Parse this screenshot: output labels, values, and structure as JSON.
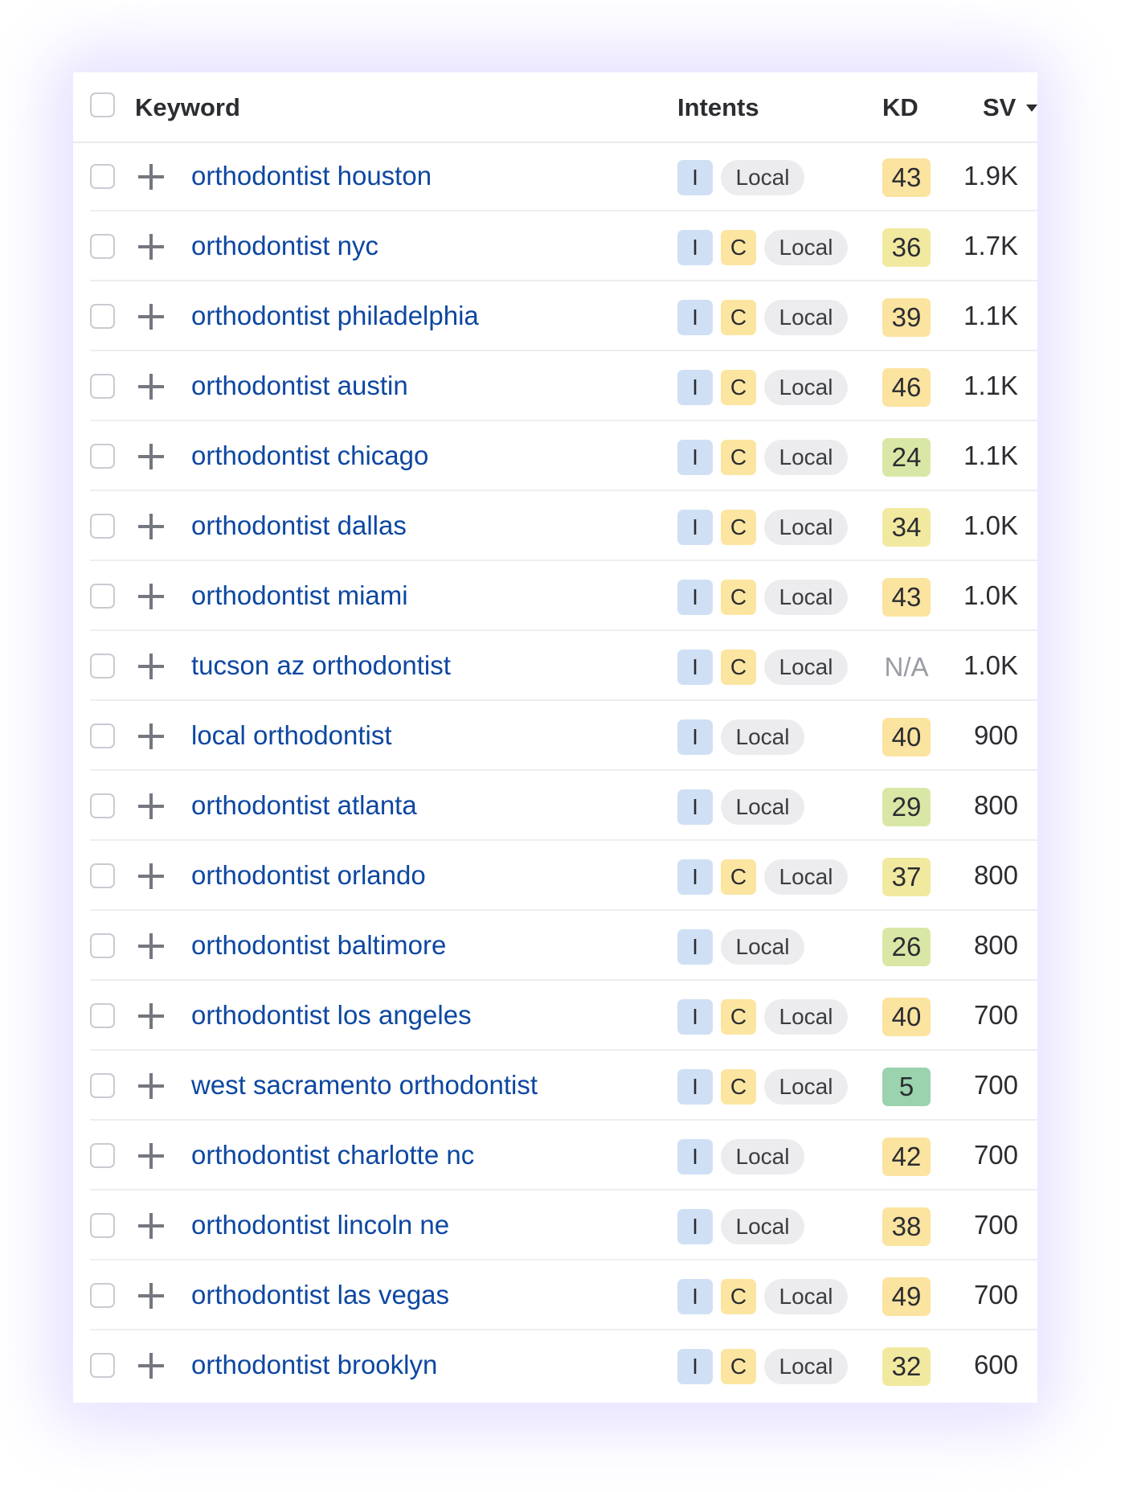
{
  "columns": {
    "keyword": "Keyword",
    "intents": "Intents",
    "kd": "KD",
    "sv": "SV",
    "sv_sort_icon": "caret-down-icon"
  },
  "colors": {
    "keyword_link": "#0d47a1",
    "intent_informational": "#cfe0f5",
    "intent_commercial": "#fbe5a0",
    "intent_local": "#ececef",
    "kd_easy": "#9ad3ae",
    "kd_possible": "#d9e7a6",
    "kd_mid": "#f2e9a0",
    "kd_hard": "#fbe3a0"
  },
  "rows": [
    {
      "keyword": "orthodontist houston",
      "intents": [
        "I",
        "Local"
      ],
      "kd": "43",
      "sv": "1.9K"
    },
    {
      "keyword": "orthodontist nyc",
      "intents": [
        "I",
        "C",
        "Local"
      ],
      "kd": "36",
      "sv": "1.7K"
    },
    {
      "keyword": "orthodontist philadelphia",
      "intents": [
        "I",
        "C",
        "Local"
      ],
      "kd": "39",
      "sv": "1.1K"
    },
    {
      "keyword": "orthodontist austin",
      "intents": [
        "I",
        "C",
        "Local"
      ],
      "kd": "46",
      "sv": "1.1K"
    },
    {
      "keyword": "orthodontist chicago",
      "intents": [
        "I",
        "C",
        "Local"
      ],
      "kd": "24",
      "sv": "1.1K"
    },
    {
      "keyword": "orthodontist dallas",
      "intents": [
        "I",
        "C",
        "Local"
      ],
      "kd": "34",
      "sv": "1.0K"
    },
    {
      "keyword": "orthodontist miami",
      "intents": [
        "I",
        "C",
        "Local"
      ],
      "kd": "43",
      "sv": "1.0K"
    },
    {
      "keyword": "tucson az orthodontist",
      "intents": [
        "I",
        "C",
        "Local"
      ],
      "kd": "N/A",
      "sv": "1.0K"
    },
    {
      "keyword": "local orthodontist",
      "intents": [
        "I",
        "Local"
      ],
      "kd": "40",
      "sv": "900"
    },
    {
      "keyword": "orthodontist atlanta",
      "intents": [
        "I",
        "Local"
      ],
      "kd": "29",
      "sv": "800"
    },
    {
      "keyword": "orthodontist orlando",
      "intents": [
        "I",
        "C",
        "Local"
      ],
      "kd": "37",
      "sv": "800"
    },
    {
      "keyword": "orthodontist baltimore",
      "intents": [
        "I",
        "Local"
      ],
      "kd": "26",
      "sv": "800"
    },
    {
      "keyword": "orthodontist los angeles",
      "intents": [
        "I",
        "C",
        "Local"
      ],
      "kd": "40",
      "sv": "700"
    },
    {
      "keyword": "west sacramento orthodontist",
      "intents": [
        "I",
        "C",
        "Local"
      ],
      "kd": "5",
      "sv": "700"
    },
    {
      "keyword": "orthodontist charlotte nc",
      "intents": [
        "I",
        "Local"
      ],
      "kd": "42",
      "sv": "700"
    },
    {
      "keyword": "orthodontist lincoln ne",
      "intents": [
        "I",
        "Local"
      ],
      "kd": "38",
      "sv": "700"
    },
    {
      "keyword": "orthodontist las vegas",
      "intents": [
        "I",
        "C",
        "Local"
      ],
      "kd": "49",
      "sv": "700"
    },
    {
      "keyword": "orthodontist brooklyn",
      "intents": [
        "I",
        "C",
        "Local"
      ],
      "kd": "32",
      "sv": "600"
    }
  ]
}
